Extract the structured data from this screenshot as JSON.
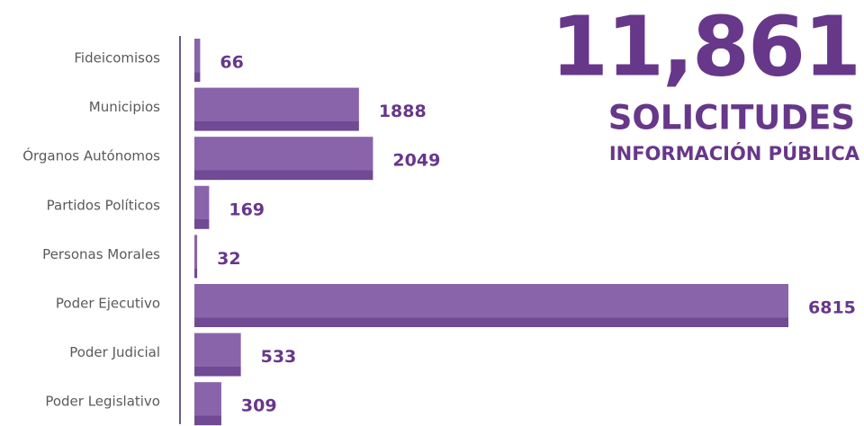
{
  "chart_data": {
    "type": "bar",
    "orientation": "horizontal",
    "headline": "11,861",
    "title": "SOLICITUDES",
    "subtitle": "INFORMACIÓN PÚBLICA",
    "categories": [
      "Fideicomisos",
      "Municipios",
      "Órganos Autónomos",
      "Partidos Políticos",
      "Personas Morales",
      "Poder Ejecutivo",
      "Poder Judicial",
      "Poder Legislativo"
    ],
    "values": [
      66,
      1888,
      2049,
      169,
      32,
      6815,
      533,
      309
    ],
    "color": "#8560a4"
  }
}
